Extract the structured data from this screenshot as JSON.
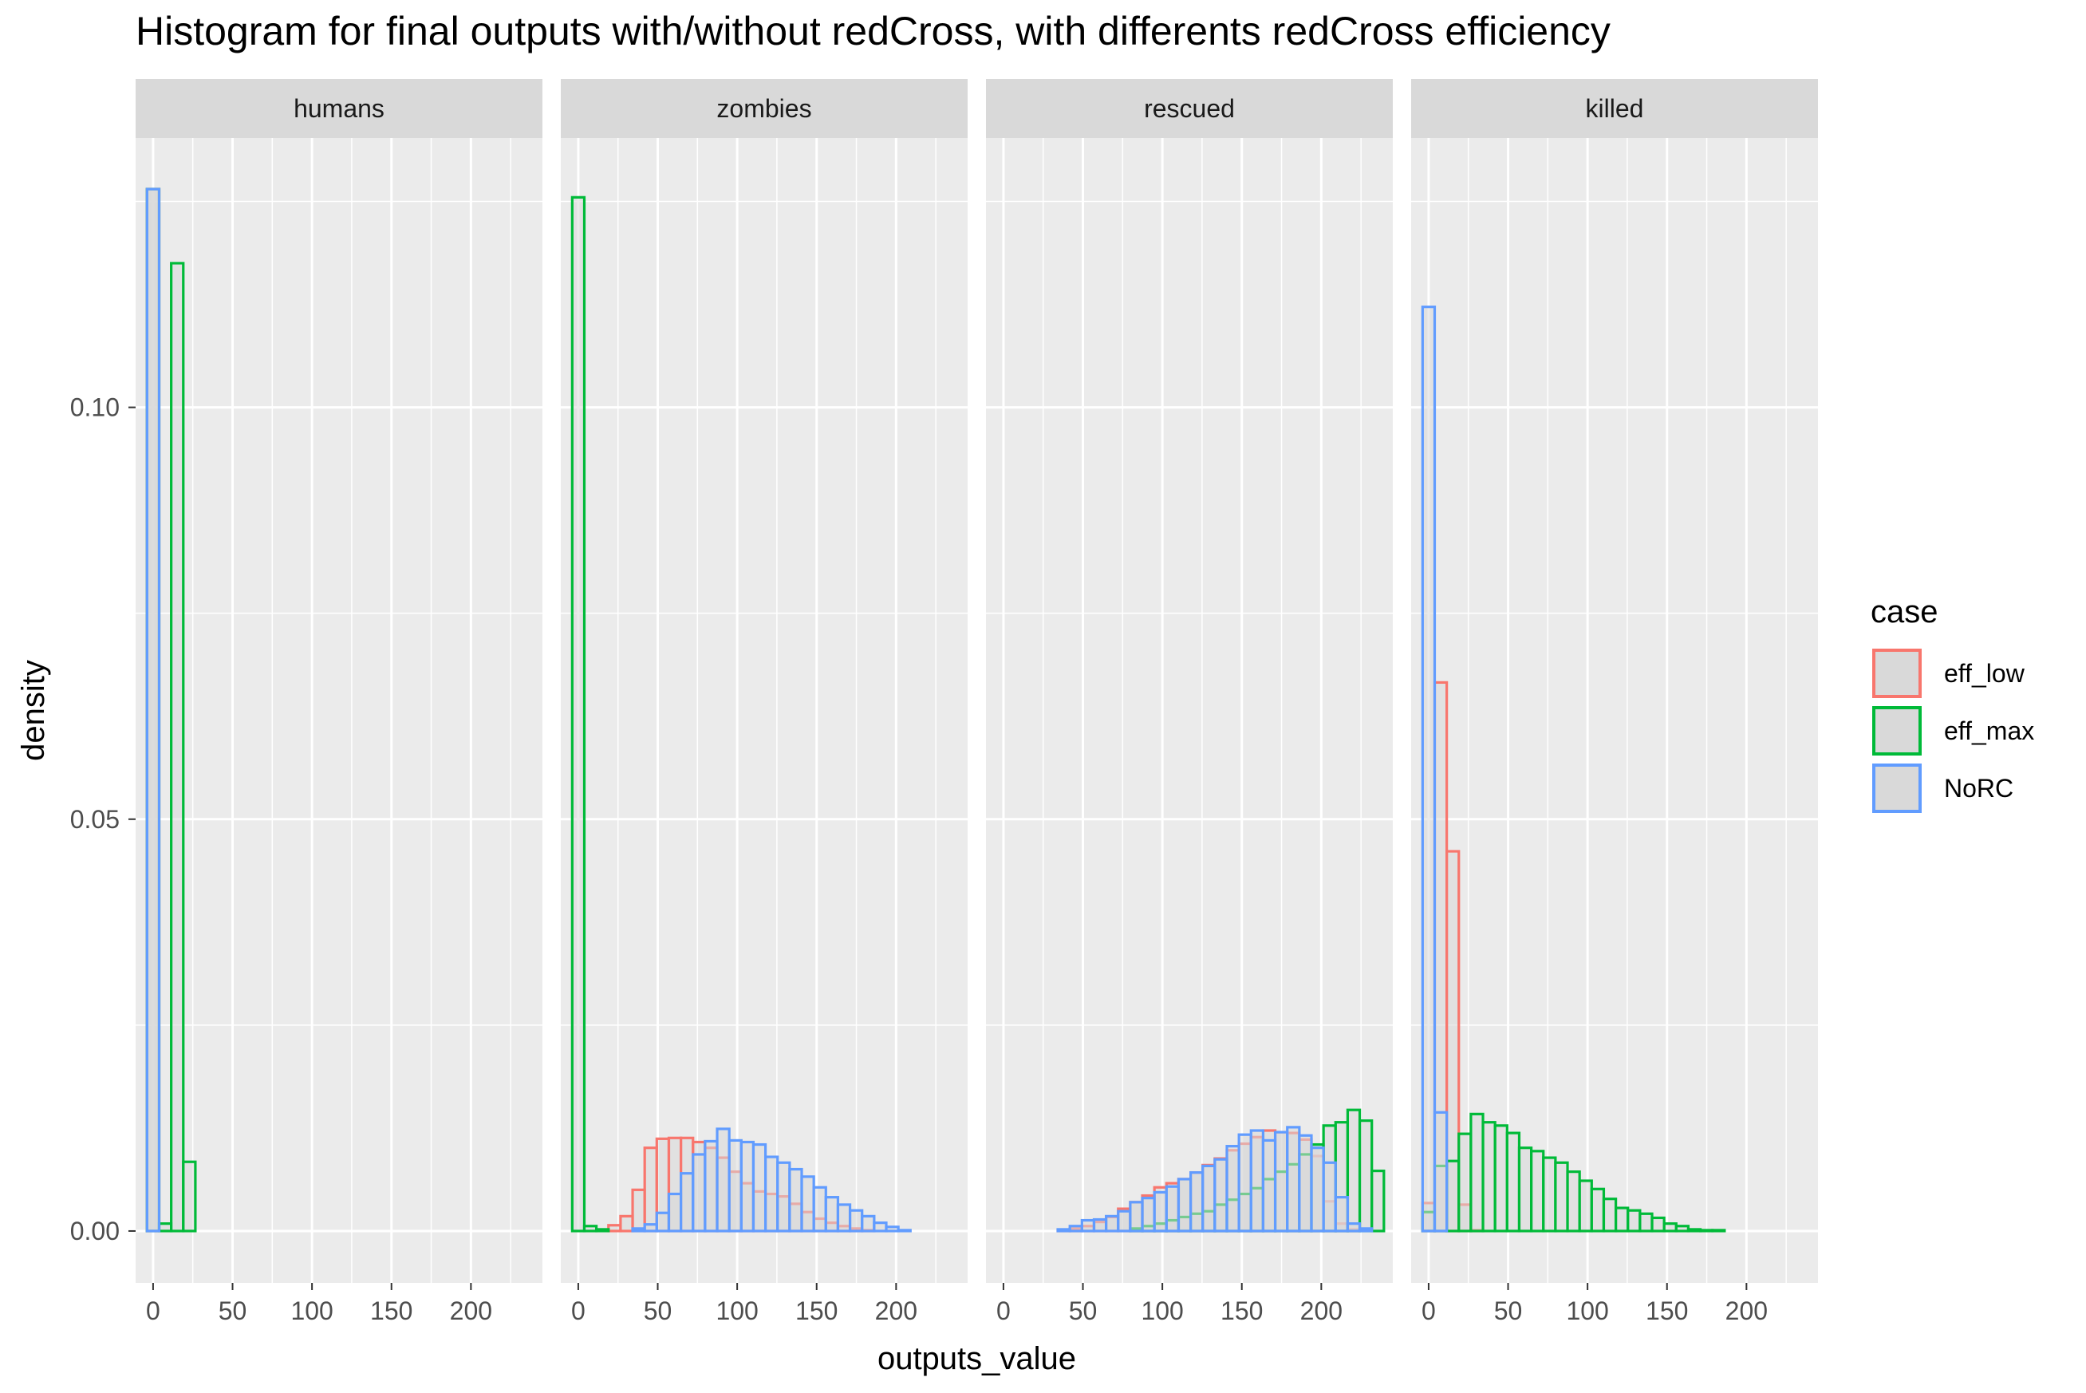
{
  "chart_data": {
    "type": "bar",
    "title": "Histogram for final outputs with/without redCross, with differents redCross efficiency",
    "xlabel": "outputs_value",
    "ylabel": "density",
    "xlim": [
      -11,
      245
    ],
    "ylim": [
      -0.0063,
      0.1327
    ],
    "x_ticks": [
      0,
      50,
      100,
      150,
      200
    ],
    "y_ticks": [
      0.0,
      0.05,
      0.1
    ],
    "y_tick_labels": [
      "0.00",
      "0.05",
      "0.10"
    ],
    "bin_width": 7.6,
    "bin_start": -3.8,
    "grid": true,
    "legend": {
      "title": "case",
      "placement": "right",
      "entries": [
        {
          "name": "eff_low",
          "color": "#F8766D"
        },
        {
          "name": "eff_max",
          "color": "#00BA38"
        },
        {
          "name": "NoRC",
          "color": "#619CFF"
        }
      ]
    },
    "facets": [
      {
        "name": "humans",
        "series": [
          {
            "name": "eff_low",
            "values": [
              0.1265
            ]
          },
          {
            "name": "eff_max",
            "values": [
              0.1265,
              0.0009,
              0.1175,
              0.0084
            ]
          },
          {
            "name": "NoRC",
            "values": [
              0.1265
            ]
          }
        ]
      },
      {
        "name": "zombies",
        "series": [
          {
            "name": "eff_low",
            "values": [
              0.0,
              0.0,
              0.0,
              0.0007,
              0.0018,
              0.005,
              0.0101,
              0.0112,
              0.0113,
              0.0113,
              0.0108,
              0.0101,
              0.0089,
              0.0072,
              0.0058,
              0.0048,
              0.0045,
              0.0042,
              0.0033,
              0.0023,
              0.0015,
              0.001,
              0.0006,
              0.0003,
              0.0001,
              0.0,
              0.0,
              0.0,
              0.0,
              0.0,
              0.0,
              0.0
            ]
          },
          {
            "name": "eff_max",
            "values": [
              0.1255,
              0.0006,
              0.0002,
              0.0,
              0.0,
              0.0,
              0.0,
              0.0,
              0.0,
              0.0,
              0.0,
              0.0,
              0.0,
              0.0,
              0.0,
              0.0,
              0.0,
              0.0,
              0.0,
              0.0,
              0.0,
              0.0,
              0.0,
              0.0,
              0.0,
              0.0,
              0.0,
              0.0,
              0.0,
              0.0,
              0.0,
              0.0
            ]
          },
          {
            "name": "NoRC",
            "values": [
              0.0,
              0.0,
              0.0,
              0.0,
              0.0,
              0.0003,
              0.0008,
              0.0022,
              0.0045,
              0.007,
              0.0093,
              0.0109,
              0.0124,
              0.011,
              0.0108,
              0.0105,
              0.009,
              0.0083,
              0.0075,
              0.0066,
              0.0053,
              0.0041,
              0.0032,
              0.0025,
              0.0018,
              0.001,
              0.0005,
              0.0001,
              0.0,
              0.0,
              0.0,
              0.0
            ]
          }
        ]
      },
      {
        "name": "rescued",
        "series": [
          {
            "name": "eff_low",
            "values": [
              0.0,
              0.0,
              0.0,
              0.0,
              0.0,
              0.0001,
              0.0003,
              0.0006,
              0.0011,
              0.0017,
              0.0027,
              0.0035,
              0.0043,
              0.0053,
              0.0058,
              0.0063,
              0.0071,
              0.008,
              0.0088,
              0.0098,
              0.0106,
              0.0114,
              0.0122,
              0.012,
              0.0119,
              0.0111,
              0.0091,
              0.0036,
              0.0009,
              0.0002,
              0.0,
              0.0
            ]
          },
          {
            "name": "eff_max",
            "values": [
              0.0,
              0.0,
              0.0,
              0.0,
              0.0,
              0.0,
              0.0,
              0.0,
              0.0,
              0.0,
              0.0,
              0.0003,
              0.0006,
              0.0009,
              0.0013,
              0.0017,
              0.0021,
              0.0024,
              0.0032,
              0.0038,
              0.0045,
              0.0052,
              0.0063,
              0.0072,
              0.0081,
              0.0093,
              0.0105,
              0.0128,
              0.0132,
              0.0147,
              0.0134,
              0.0073
            ]
          },
          {
            "name": "NoRC",
            "values": [
              0.0,
              0.0,
              0.0,
              0.0,
              0.0,
              0.0002,
              0.0006,
              0.0013,
              0.0014,
              0.0018,
              0.0024,
              0.0035,
              0.004,
              0.0047,
              0.0054,
              0.0063,
              0.0071,
              0.0079,
              0.0087,
              0.0103,
              0.0117,
              0.0122,
              0.011,
              0.012,
              0.0126,
              0.0116,
              0.0101,
              0.0083,
              0.0041,
              0.0009,
              0.0003,
              0.0
            ]
          }
        ]
      },
      {
        "name": "killed",
        "series": [
          {
            "name": "eff_low",
            "values": [
              0.0034,
              0.0666,
              0.0461,
              0.0032,
              0.0001,
              0.0,
              0.0,
              0.0,
              0.0,
              0.0,
              0.0,
              0.0,
              0.0,
              0.0,
              0.0,
              0.0,
              0.0,
              0.0,
              0.0,
              0.0,
              0.0,
              0.0,
              0.0,
              0.0,
              0.0,
              0.0,
              0.0,
              0.0,
              0.0,
              0.0,
              0.0,
              0.0
            ]
          },
          {
            "name": "eff_max",
            "values": [
              0.0023,
              0.0079,
              0.0085,
              0.0118,
              0.0142,
              0.0132,
              0.0128,
              0.0119,
              0.0101,
              0.0097,
              0.0089,
              0.0083,
              0.0072,
              0.0061,
              0.0051,
              0.0039,
              0.0028,
              0.0025,
              0.0021,
              0.0016,
              0.0009,
              0.0006,
              0.0002,
              0.0001,
              0.0001,
              0.0,
              0.0,
              0.0,
              0.0,
              0.0,
              0.0,
              0.0
            ]
          },
          {
            "name": "NoRC",
            "values": [
              0.1122,
              0.0144,
              0.0,
              0.0,
              0.0,
              0.0,
              0.0,
              0.0,
              0.0,
              0.0,
              0.0,
              0.0,
              0.0,
              0.0,
              0.0,
              0.0,
              0.0,
              0.0,
              0.0,
              0.0,
              0.0,
              0.0,
              0.0,
              0.0,
              0.0,
              0.0,
              0.0,
              0.0,
              0.0,
              0.0,
              0.0,
              0.0
            ]
          }
        ]
      }
    ]
  }
}
